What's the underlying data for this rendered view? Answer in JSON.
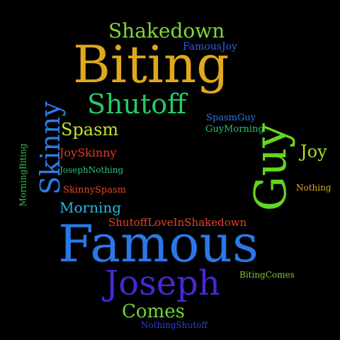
{
  "words": [
    {
      "id": "shakedown",
      "text": "Shakedown",
      "color": "#7fd63a"
    },
    {
      "id": "famousjoy",
      "text": "FamousJoy",
      "color": "#2e5fe0"
    },
    {
      "id": "biting",
      "text": "Biting",
      "color": "#e0a81e"
    },
    {
      "id": "shutoff",
      "text": "Shutoff",
      "color": "#25c96a"
    },
    {
      "id": "skinny",
      "text": "Skinny",
      "color": "#2e7be6"
    },
    {
      "id": "spasmguy",
      "text": "SpasmGuy",
      "color": "#2d73e8"
    },
    {
      "id": "guymorning",
      "text": "GuyMorning",
      "color": "#22c46e"
    },
    {
      "id": "spasm",
      "text": "Spasm",
      "color": "#c8e02a"
    },
    {
      "id": "guy",
      "text": "Guy",
      "color": "#66d61e"
    },
    {
      "id": "joy",
      "text": "Joy",
      "color": "#a8e028"
    },
    {
      "id": "morningbiting",
      "text": "MorningBiting",
      "color": "#2fcb48"
    },
    {
      "id": "joyskinny",
      "text": "JoySkinny",
      "color": "#e03a2a"
    },
    {
      "id": "josephnothing",
      "text": "JosephNothing",
      "color": "#2ec07a"
    },
    {
      "id": "nothing",
      "text": "Nothing",
      "color": "#e0a81e"
    },
    {
      "id": "skinnyspasm",
      "text": "SkinnySpasm",
      "color": "#e0482e"
    },
    {
      "id": "morning",
      "text": "Morning",
      "color": "#28b8e0"
    },
    {
      "id": "shutofflove",
      "text": "ShutoffLoveInShakedown",
      "color": "#e0432e"
    },
    {
      "id": "famous",
      "text": "Famous",
      "color": "#2a78e8"
    },
    {
      "id": "joseph",
      "text": "Joseph",
      "color": "#4a25d8"
    },
    {
      "id": "bitingcomes",
      "text": "BitingComes",
      "color": "#7fc832"
    },
    {
      "id": "comes",
      "text": "Comes",
      "color": "#6ed63a"
    },
    {
      "id": "nothingshutoff",
      "text": "NothingShutoff",
      "color": "#2b3fd8"
    }
  ]
}
